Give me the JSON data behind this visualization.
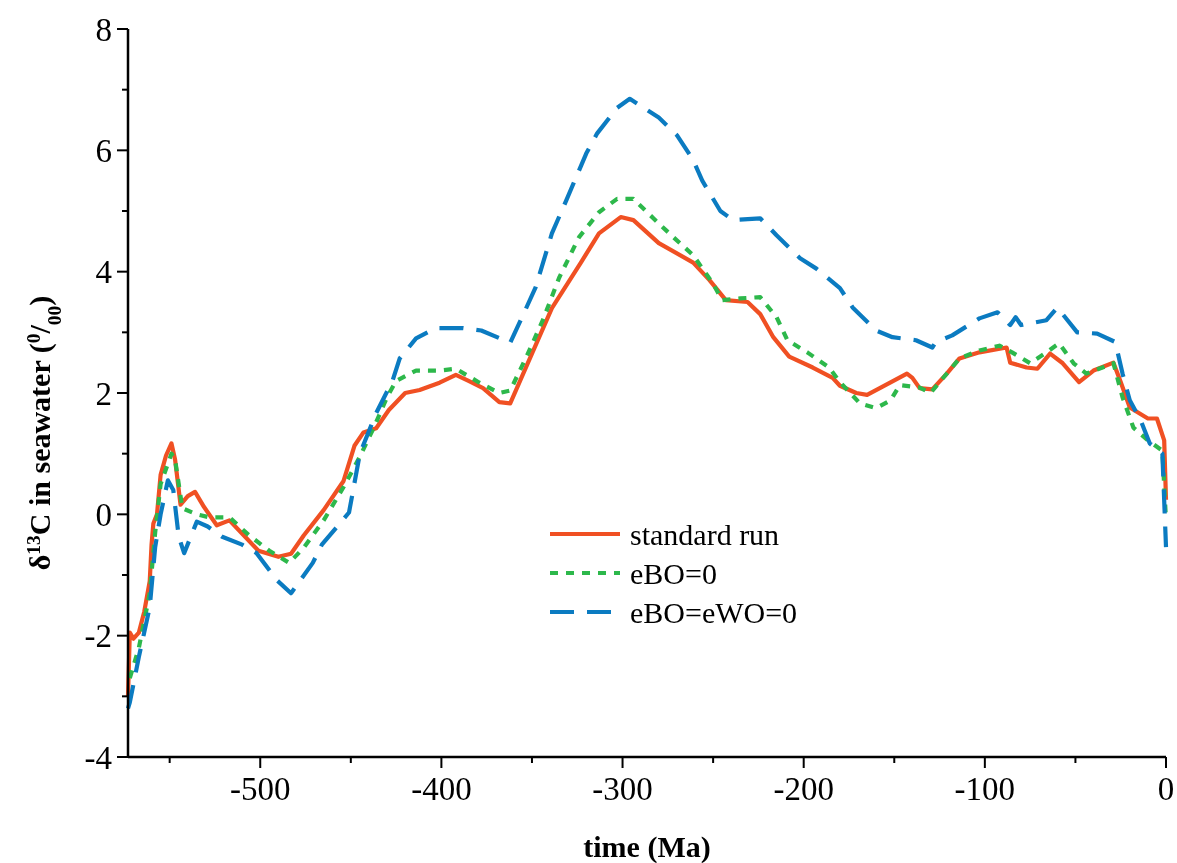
{
  "chart_data": {
    "type": "line",
    "xlabel": "time (Ma)",
    "ylabel": "δ$^{13}$C in seawater ($^{0}$/$_{00}$)",
    "xlim": [
      -573,
      0
    ],
    "ylim": [
      -4,
      8
    ],
    "xticks": [
      -500,
      -400,
      -300,
      -200,
      -100,
      0,
      {
        "value": -550,
        "label": null
      },
      {
        "value": -450,
        "label": null
      },
      {
        "value": -350,
        "label": null
      },
      {
        "value": -250,
        "label": null
      },
      {
        "value": -150,
        "label": null
      },
      {
        "value": -50,
        "label": null
      }
    ],
    "yticks": [
      -4,
      -2,
      0,
      2,
      4,
      6,
      8,
      {
        "value": -3,
        "label": null
      },
      {
        "value": -1,
        "label": null
      },
      {
        "value": 1,
        "label": null
      },
      {
        "value": 3,
        "label": null
      },
      {
        "value": 5,
        "label": null
      },
      {
        "value": 7,
        "label": null
      }
    ],
    "grid": false,
    "legend": "bottom",
    "marker": "none",
    "series": [
      {
        "name": "standard run",
        "color": "#f05023",
        "line_style": "solid",
        "x": [
          -573,
          -572,
          -570,
          -567,
          -564,
          -561,
          -560,
          -559,
          -557,
          -555,
          -552,
          -549,
          -547,
          -544,
          -540,
          -536,
          -531,
          -524,
          -517,
          -509,
          -501,
          -490,
          -483,
          -476,
          -465,
          -454,
          -448,
          -443,
          -436,
          -429,
          -420,
          -412,
          -401,
          -392,
          -385,
          -377,
          -368,
          -362,
          -350,
          -339,
          -323,
          -313,
          -301,
          -294,
          -280,
          -261,
          -252,
          -243,
          -231,
          -224,
          -217,
          -208,
          -195,
          -184,
          -180,
          -171,
          -165,
          -158,
          -143,
          -140,
          -136,
          -129,
          -121,
          -114,
          -103,
          -88,
          -86,
          -77,
          -71,
          -64,
          -57,
          -48,
          -40,
          -29,
          -25,
          -20,
          -10,
          -5,
          -1,
          0
        ],
        "values": [
          -3.0,
          -1.95,
          -2.05,
          -1.95,
          -1.6,
          -1.1,
          -0.5,
          -0.15,
          0.0,
          0.65,
          0.97,
          1.17,
          0.9,
          0.16,
          0.3,
          0.37,
          0.12,
          -0.18,
          -0.1,
          -0.35,
          -0.6,
          -0.7,
          -0.65,
          -0.35,
          0.07,
          0.55,
          1.13,
          1.35,
          1.42,
          1.72,
          2.0,
          2.05,
          2.17,
          2.3,
          2.2,
          2.08,
          1.85,
          1.83,
          2.65,
          3.4,
          4.15,
          4.63,
          4.9,
          4.85,
          4.47,
          4.15,
          3.86,
          3.53,
          3.5,
          3.3,
          2.93,
          2.6,
          2.42,
          2.25,
          2.12,
          2.0,
          1.97,
          2.08,
          2.32,
          2.25,
          2.08,
          2.06,
          2.32,
          2.57,
          2.67,
          2.75,
          2.5,
          2.42,
          2.4,
          2.65,
          2.49,
          2.18,
          2.37,
          2.5,
          2.18,
          1.76,
          1.58,
          1.58,
          1.22,
          0.24
        ]
      },
      {
        "name": "eBO=0",
        "color": "#2db84b",
        "line_style": "dotted",
        "x": [
          -572,
          -567,
          -561,
          -558,
          -555,
          -549,
          -547,
          -543,
          -535,
          -528,
          -517,
          -506,
          -495,
          -484,
          -476,
          -465,
          -454,
          -445,
          -437,
          -430,
          -425,
          -414,
          -401,
          -392,
          -379,
          -368,
          -362,
          -353,
          -344,
          -335,
          -324,
          -313,
          -303,
          -294,
          -283,
          -272,
          -261,
          -250,
          -245,
          -235,
          -224,
          -215,
          -209,
          -198,
          -186,
          -180,
          -169,
          -160,
          -152,
          -147,
          -136,
          -130,
          -121,
          -114,
          -103,
          -92,
          -85,
          -75,
          -66,
          -59,
          -51,
          -44,
          -29,
          -24,
          -18,
          -10,
          -2,
          0
        ],
        "values": [
          -2.7,
          -2.2,
          -1.3,
          -0.3,
          0.5,
          1.0,
          0.9,
          0.1,
          0.0,
          -0.05,
          -0.05,
          -0.35,
          -0.6,
          -0.8,
          -0.55,
          -0.1,
          0.45,
          0.95,
          1.45,
          1.93,
          2.2,
          2.37,
          2.37,
          2.4,
          2.17,
          2.0,
          2.04,
          2.6,
          3.2,
          3.9,
          4.57,
          4.98,
          5.2,
          5.2,
          4.88,
          4.57,
          4.27,
          3.8,
          3.53,
          3.56,
          3.58,
          3.25,
          2.87,
          2.67,
          2.42,
          2.18,
          1.83,
          1.75,
          1.88,
          2.13,
          2.09,
          2.0,
          2.32,
          2.57,
          2.7,
          2.78,
          2.67,
          2.49,
          2.67,
          2.82,
          2.49,
          2.32,
          2.49,
          1.93,
          1.43,
          1.22,
          1.05,
          -0.1
        ]
      },
      {
        "name": "eBO=eWO=0",
        "color": "#0b7bc1",
        "line_style": "dashed",
        "x": [
          -573,
          -572,
          -567,
          -561,
          -558,
          -555,
          -551,
          -548,
          -545,
          -542,
          -535,
          -529,
          -521,
          -510,
          -502,
          -491,
          -483,
          -471,
          -466,
          -451,
          -445,
          -436,
          -427,
          -423,
          -414,
          -403,
          -388,
          -378,
          -362,
          -357,
          -348,
          -339,
          -331,
          -320,
          -314,
          -303,
          -296,
          -280,
          -270,
          -261,
          -256,
          -246,
          -239,
          -224,
          -215,
          -202,
          -193,
          -180,
          -173,
          -160,
          -151,
          -138,
          -129,
          -127,
          -118,
          -103,
          -93,
          -86,
          -83,
          -80,
          -66,
          -60,
          -49,
          -38,
          -28,
          -24,
          -20,
          -14,
          -9,
          -2,
          0
        ],
        "values": [
          -3.2,
          -3.1,
          -2.35,
          -1.53,
          -0.54,
          0.0,
          0.56,
          0.4,
          -0.37,
          -0.64,
          -0.12,
          -0.2,
          -0.37,
          -0.5,
          -0.64,
          -1.08,
          -1.3,
          -0.8,
          -0.5,
          0.03,
          1.0,
          1.67,
          2.2,
          2.57,
          2.9,
          3.07,
          3.07,
          3.03,
          2.83,
          3.15,
          3.74,
          4.63,
          5.18,
          5.95,
          6.28,
          6.7,
          6.85,
          6.54,
          6.25,
          5.84,
          5.5,
          5.0,
          4.85,
          4.88,
          4.6,
          4.22,
          4.05,
          3.73,
          3.41,
          3.03,
          2.92,
          2.87,
          2.75,
          2.84,
          2.95,
          3.23,
          3.33,
          3.12,
          3.25,
          3.12,
          3.2,
          3.41,
          3.0,
          2.98,
          2.84,
          2.32,
          1.88,
          1.55,
          1.17,
          1.0,
          -0.54
        ]
      }
    ]
  }
}
